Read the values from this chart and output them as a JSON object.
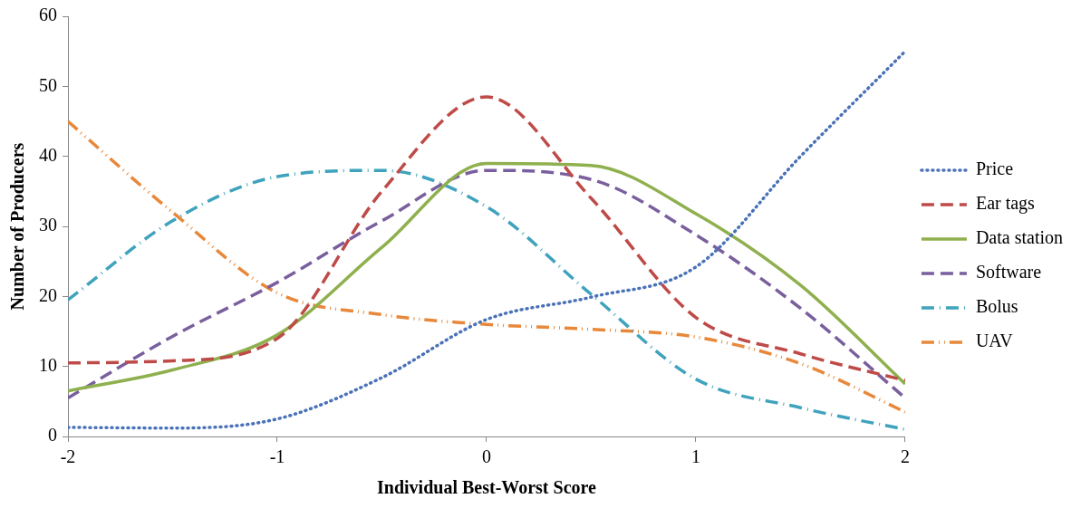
{
  "chart_data": {
    "type": "line",
    "xlabel": "Individual Best-Worst Score",
    "ylabel": "Number of Producers",
    "x": [
      -2,
      -1.5,
      -1,
      -0.5,
      0,
      0.5,
      1,
      1.5,
      2
    ],
    "xlim": [
      -2,
      2
    ],
    "xticks": [
      -2,
      -1,
      0,
      1,
      2
    ],
    "ylim": [
      0,
      60
    ],
    "yticks": [
      0,
      10,
      20,
      30,
      40,
      50,
      60
    ],
    "grid": false,
    "legend": "right",
    "marker": "none",
    "series": [
      {
        "name": "Price",
        "color": "#4a72b8",
        "line_style": "dotted",
        "values": [
          1.3,
          1.2,
          2.5,
          8.4,
          16.7,
          19.9,
          24.2,
          40,
          55
        ]
      },
      {
        "name": "Ear tags",
        "color": "#be4b48",
        "line_style": "dashed",
        "values": [
          10.5,
          10.8,
          14,
          35,
          48.5,
          34,
          17,
          11.8,
          8
        ]
      },
      {
        "name": "Data station",
        "color": "#8fb04e",
        "line_style": "solid",
        "values": [
          6.5,
          9.5,
          14.5,
          27,
          39,
          38.7,
          31.8,
          21.6,
          7.5
        ]
      },
      {
        "name": "Software",
        "color": "#7a5f9e",
        "line_style": "dashed",
        "values": [
          5.5,
          14.3,
          22,
          30.8,
          38,
          36.7,
          28.8,
          18.3,
          5.5
        ]
      },
      {
        "name": "Bolus",
        "color": "#3fa3bd",
        "line_style": "dashdot",
        "values": [
          19.5,
          30.8,
          37.1,
          38,
          32.8,
          20.3,
          8.2,
          4.1,
          1
        ]
      },
      {
        "name": "UAV",
        "color": "#e8883a",
        "line_style": "dashdotdot",
        "values": [
          45,
          32,
          20.5,
          17.4,
          16,
          15.3,
          14.2,
          10.4,
          3.5
        ]
      }
    ]
  }
}
